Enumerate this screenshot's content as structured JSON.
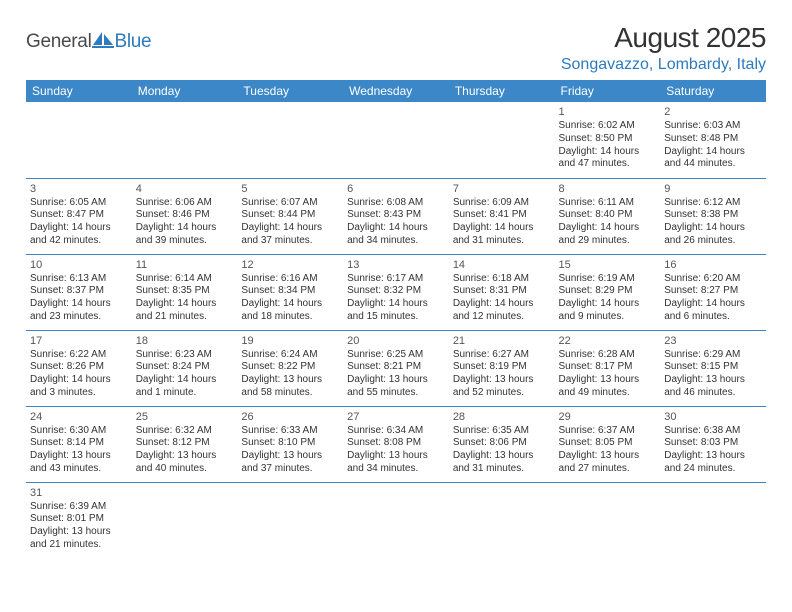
{
  "brand": {
    "name1": "General",
    "name2": "Blue"
  },
  "title": "August 2025",
  "location": "Songavazzo, Lombardy, Italy",
  "theme": {
    "header_bg": "#3b87c8",
    "header_fg": "#ffffff",
    "accent": "#2d7bbd",
    "text": "#333333",
    "background": "#ffffff",
    "cell_font_size": 10,
    "header_font_size": 12,
    "title_font_size": 28,
    "location_font_size": 16
  },
  "weekdays": [
    "Sunday",
    "Monday",
    "Tuesday",
    "Wednesday",
    "Thursday",
    "Friday",
    "Saturday"
  ],
  "first_weekday_index": 5,
  "days": [
    {
      "n": 1,
      "sunrise": "6:02 AM",
      "sunset": "8:50 PM",
      "daylight": "14 hours and 47 minutes."
    },
    {
      "n": 2,
      "sunrise": "6:03 AM",
      "sunset": "8:48 PM",
      "daylight": "14 hours and 44 minutes."
    },
    {
      "n": 3,
      "sunrise": "6:05 AM",
      "sunset": "8:47 PM",
      "daylight": "14 hours and 42 minutes."
    },
    {
      "n": 4,
      "sunrise": "6:06 AM",
      "sunset": "8:46 PM",
      "daylight": "14 hours and 39 minutes."
    },
    {
      "n": 5,
      "sunrise": "6:07 AM",
      "sunset": "8:44 PM",
      "daylight": "14 hours and 37 minutes."
    },
    {
      "n": 6,
      "sunrise": "6:08 AM",
      "sunset": "8:43 PM",
      "daylight": "14 hours and 34 minutes."
    },
    {
      "n": 7,
      "sunrise": "6:09 AM",
      "sunset": "8:41 PM",
      "daylight": "14 hours and 31 minutes."
    },
    {
      "n": 8,
      "sunrise": "6:11 AM",
      "sunset": "8:40 PM",
      "daylight": "14 hours and 29 minutes."
    },
    {
      "n": 9,
      "sunrise": "6:12 AM",
      "sunset": "8:38 PM",
      "daylight": "14 hours and 26 minutes."
    },
    {
      "n": 10,
      "sunrise": "6:13 AM",
      "sunset": "8:37 PM",
      "daylight": "14 hours and 23 minutes."
    },
    {
      "n": 11,
      "sunrise": "6:14 AM",
      "sunset": "8:35 PM",
      "daylight": "14 hours and 21 minutes."
    },
    {
      "n": 12,
      "sunrise": "6:16 AM",
      "sunset": "8:34 PM",
      "daylight": "14 hours and 18 minutes."
    },
    {
      "n": 13,
      "sunrise": "6:17 AM",
      "sunset": "8:32 PM",
      "daylight": "14 hours and 15 minutes."
    },
    {
      "n": 14,
      "sunrise": "6:18 AM",
      "sunset": "8:31 PM",
      "daylight": "14 hours and 12 minutes."
    },
    {
      "n": 15,
      "sunrise": "6:19 AM",
      "sunset": "8:29 PM",
      "daylight": "14 hours and 9 minutes."
    },
    {
      "n": 16,
      "sunrise": "6:20 AM",
      "sunset": "8:27 PM",
      "daylight": "14 hours and 6 minutes."
    },
    {
      "n": 17,
      "sunrise": "6:22 AM",
      "sunset": "8:26 PM",
      "daylight": "14 hours and 3 minutes."
    },
    {
      "n": 18,
      "sunrise": "6:23 AM",
      "sunset": "8:24 PM",
      "daylight": "14 hours and 1 minute."
    },
    {
      "n": 19,
      "sunrise": "6:24 AM",
      "sunset": "8:22 PM",
      "daylight": "13 hours and 58 minutes."
    },
    {
      "n": 20,
      "sunrise": "6:25 AM",
      "sunset": "8:21 PM",
      "daylight": "13 hours and 55 minutes."
    },
    {
      "n": 21,
      "sunrise": "6:27 AM",
      "sunset": "8:19 PM",
      "daylight": "13 hours and 52 minutes."
    },
    {
      "n": 22,
      "sunrise": "6:28 AM",
      "sunset": "8:17 PM",
      "daylight": "13 hours and 49 minutes."
    },
    {
      "n": 23,
      "sunrise": "6:29 AM",
      "sunset": "8:15 PM",
      "daylight": "13 hours and 46 minutes."
    },
    {
      "n": 24,
      "sunrise": "6:30 AM",
      "sunset": "8:14 PM",
      "daylight": "13 hours and 43 minutes."
    },
    {
      "n": 25,
      "sunrise": "6:32 AM",
      "sunset": "8:12 PM",
      "daylight": "13 hours and 40 minutes."
    },
    {
      "n": 26,
      "sunrise": "6:33 AM",
      "sunset": "8:10 PM",
      "daylight": "13 hours and 37 minutes."
    },
    {
      "n": 27,
      "sunrise": "6:34 AM",
      "sunset": "8:08 PM",
      "daylight": "13 hours and 34 minutes."
    },
    {
      "n": 28,
      "sunrise": "6:35 AM",
      "sunset": "8:06 PM",
      "daylight": "13 hours and 31 minutes."
    },
    {
      "n": 29,
      "sunrise": "6:37 AM",
      "sunset": "8:05 PM",
      "daylight": "13 hours and 27 minutes."
    },
    {
      "n": 30,
      "sunrise": "6:38 AM",
      "sunset": "8:03 PM",
      "daylight": "13 hours and 24 minutes."
    },
    {
      "n": 31,
      "sunrise": "6:39 AM",
      "sunset": "8:01 PM",
      "daylight": "13 hours and 21 minutes."
    }
  ],
  "labels": {
    "sunrise": "Sunrise:",
    "sunset": "Sunset:",
    "daylight": "Daylight:"
  }
}
